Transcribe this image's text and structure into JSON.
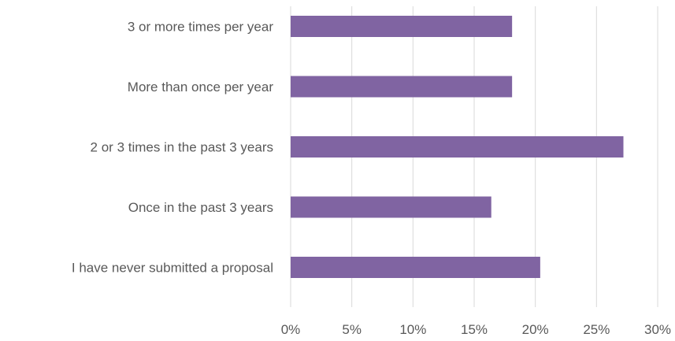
{
  "chart_data": {
    "type": "bar",
    "orientation": "horizontal",
    "categories": [
      "3 or more times per year",
      "More than once per year",
      "2 or 3 times in the past 3 years",
      "Once in the past 3 years",
      "I have never submitted a proposal"
    ],
    "values": [
      18.1,
      18.1,
      27.2,
      16.4,
      20.4
    ],
    "xlim": [
      0,
      30
    ],
    "x_ticks": [
      0,
      5,
      10,
      15,
      20,
      25,
      30
    ],
    "x_tick_labels": [
      "0%",
      "5%",
      "10%",
      "15%",
      "20%",
      "25%",
      "30%"
    ],
    "title": "",
    "xlabel": "",
    "ylabel": "",
    "grid": "vertical",
    "legend": "none",
    "bar_color": "#8064a2"
  }
}
